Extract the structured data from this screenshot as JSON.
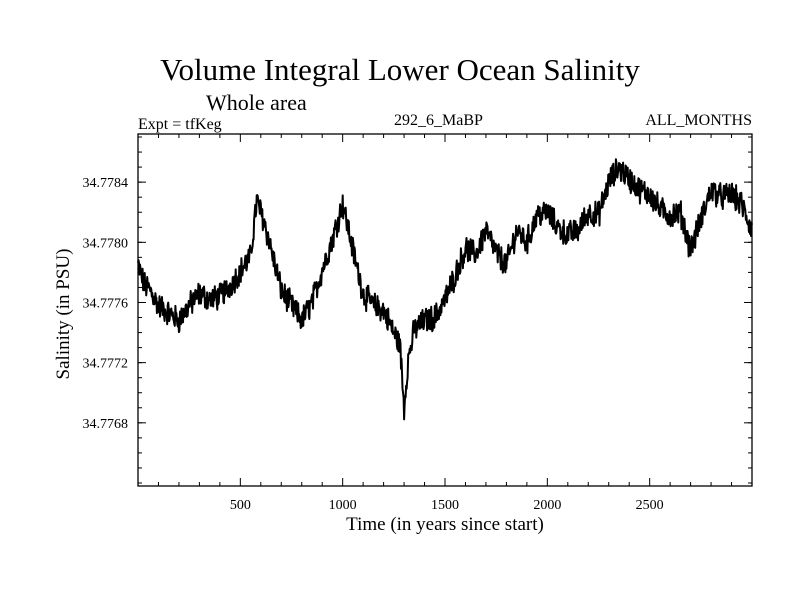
{
  "chart_data": {
    "type": "line",
    "title": "Volume Integral Lower Ocean Salinity",
    "subtitle": "Whole area",
    "annotations": {
      "left": "Expt = tfKeg",
      "center": "292_6_MaBP",
      "right": "ALL_MONTHS"
    },
    "xlabel": "Time (in years since start)",
    "ylabel": "Salinity (in PSU)",
    "xlim": [
      0,
      3000
    ],
    "ylim": [
      34.77638,
      34.77872
    ],
    "xticks": [
      500,
      1000,
      1500,
      2000,
      2500
    ],
    "yticks": [
      34.7768,
      34.7772,
      34.7776,
      34.778,
      34.7784
    ],
    "ytick_labels": [
      "34.7768",
      "34.7772",
      "34.7776",
      "34.7780",
      "34.7784"
    ],
    "grid": false,
    "series": [
      {
        "x": [
          0,
          30,
          60,
          100,
          150,
          200,
          250,
          300,
          350,
          400,
          450,
          500,
          550,
          580,
          620,
          660,
          700,
          750,
          800,
          850,
          900,
          950,
          1000,
          1050,
          1100,
          1150,
          1200,
          1250,
          1280,
          1300,
          1320,
          1350,
          1400,
          1450,
          1500,
          1550,
          1600,
          1650,
          1700,
          1750,
          1800,
          1850,
          1900,
          1950,
          2000,
          2050,
          2100,
          2150,
          2200,
          2250,
          2300,
          2350,
          2400,
          2450,
          2500,
          2550,
          2600,
          2650,
          2700,
          2750,
          2800,
          2850,
          2900,
          2950,
          3000
        ],
        "values": [
          34.77785,
          34.77772,
          34.77768,
          34.77758,
          34.77753,
          34.77748,
          34.77758,
          34.77766,
          34.77762,
          34.77764,
          34.77771,
          34.77781,
          34.7779,
          34.77828,
          34.77812,
          34.7779,
          34.77768,
          34.77758,
          34.77748,
          34.7776,
          34.77782,
          34.77802,
          34.77826,
          34.77795,
          34.77766,
          34.77758,
          34.77755,
          34.7774,
          34.77732,
          34.7769,
          34.77722,
          34.77742,
          34.77748,
          34.7775,
          34.77762,
          34.77778,
          34.77796,
          34.77792,
          34.77808,
          34.77793,
          34.77785,
          34.77808,
          34.778,
          34.77818,
          34.7782,
          34.7781,
          34.77805,
          34.77808,
          34.7782,
          34.77818,
          34.7784,
          34.7785,
          34.77842,
          34.77835,
          34.77832,
          34.77822,
          34.77818,
          34.7782,
          34.77795,
          34.77815,
          34.77835,
          34.7783,
          34.77832,
          34.77825,
          34.77808
        ]
      }
    ]
  }
}
